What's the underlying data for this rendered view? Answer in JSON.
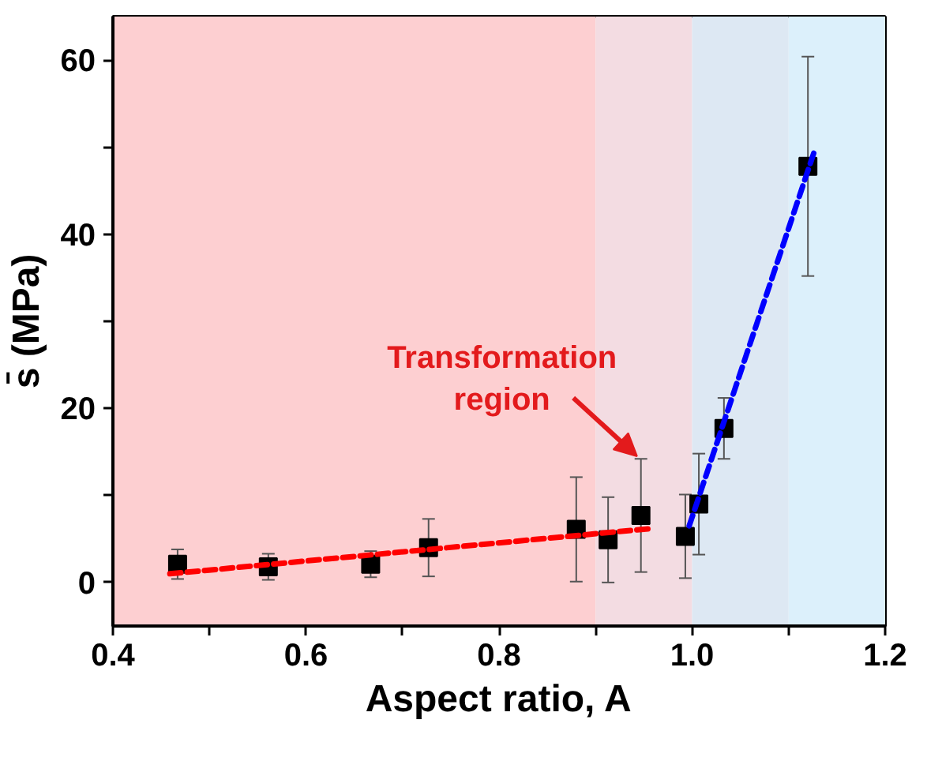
{
  "chart_data": {
    "type": "scatter",
    "xlabel": "Aspect ratio, A",
    "ylabel": "s̄ (MPa)",
    "xlim": [
      0.4,
      1.2
    ],
    "ylim": [
      -5,
      65
    ],
    "xticks": [
      0.4,
      {
        "value": 0.5,
        "label": null
      },
      0.6,
      {
        "value": 0.7,
        "label": null
      },
      0.8,
      {
        "value": 0.9,
        "label": null
      },
      {
        "value": 1.0,
        "label": "1.0"
      },
      {
        "value": 1.1,
        "label": null
      },
      1.2
    ],
    "yticks": [
      0,
      {
        "value": 10,
        "label": null
      },
      20,
      {
        "value": 30,
        "label": null
      },
      40,
      {
        "value": 50,
        "label": null
      },
      60
    ],
    "grid": false,
    "marker": "square",
    "bands": [
      {
        "axis": "x",
        "from": 0.4,
        "to": 0.9,
        "color": "#fdcfd1"
      },
      {
        "axis": "x",
        "from": 0.9,
        "to": 1.0,
        "color": "#f3dce2"
      },
      {
        "axis": "x",
        "from": 1.0,
        "to": 1.1,
        "color": "#dde8f3"
      },
      {
        "axis": "x",
        "from": 1.1,
        "to": 1.2,
        "color": "#dcf0fb"
      }
    ],
    "series": [
      {
        "color": "#000000",
        "x": [
          0.467,
          0.561,
          0.667,
          0.727,
          0.88,
          0.913,
          0.947,
          0.993,
          1.007,
          1.033,
          1.12
        ],
        "values": [
          2.1,
          1.8,
          2.1,
          4.0,
          6.1,
          4.9,
          7.7,
          5.3,
          9.0,
          17.7,
          47.8
        ],
        "errors": [
          1.7,
          1.5,
          1.5,
          3.3,
          6.0,
          4.9,
          6.5,
          4.8,
          5.8,
          3.5,
          12.6
        ]
      },
      {
        "type": "line",
        "color": "#ff0000",
        "line_style": "dashed",
        "marker": "none",
        "x": [
          0.459,
          0.958
        ],
        "values": [
          1.0,
          6.2
        ]
      },
      {
        "type": "line",
        "color": "#0000ff",
        "line_style": "dashed",
        "marker": "none",
        "x": [
          0.997,
          1.126
        ],
        "values": [
          6.5,
          49.3
        ]
      }
    ],
    "annotations": [
      {
        "text": "Transformation region",
        "x": 0.947,
        "y": 14.2
      }
    ]
  }
}
